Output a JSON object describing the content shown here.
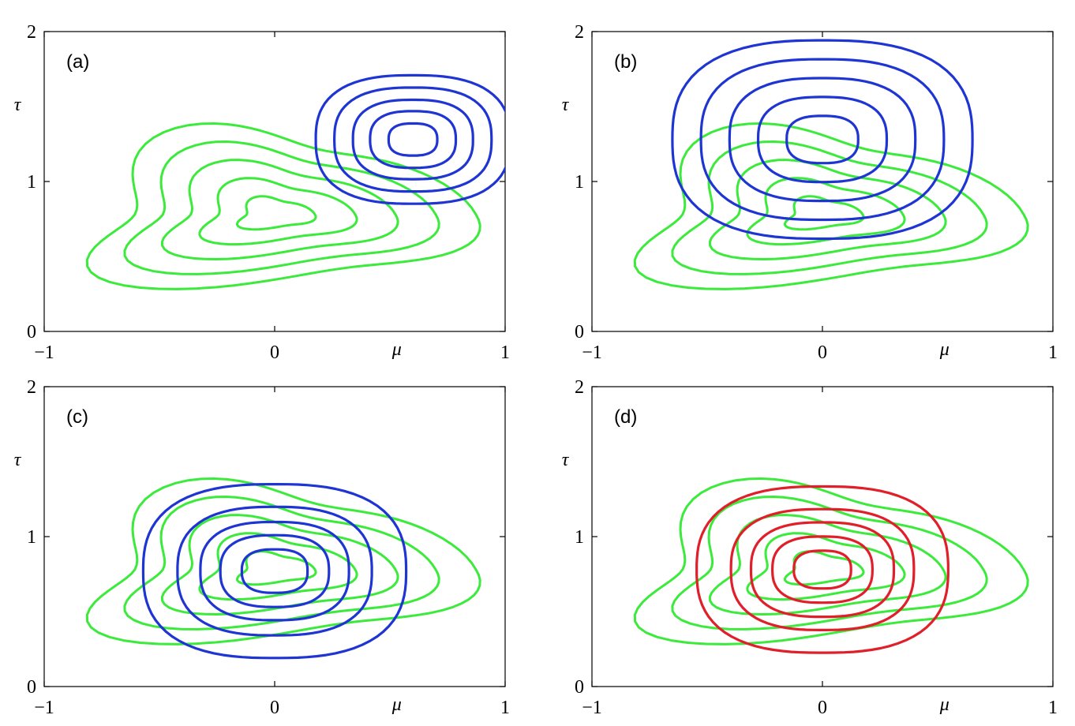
{
  "colors": {
    "green": "#3cea3c",
    "blue": "#1f35d3",
    "red": "#e01f2a",
    "axis": "#000000"
  },
  "chart_data": [
    {
      "type": "contour",
      "panel_label": "(a)",
      "xlabel": "μ",
      "ylabel": "τ",
      "xlim": [
        -1,
        1
      ],
      "ylim": [
        0,
        2
      ],
      "xticks": [
        "−1",
        "0",
        "1"
      ],
      "yticks": [
        "0",
        "1",
        "2"
      ],
      "grid": false,
      "series": [
        {
          "color": "green",
          "family": "green",
          "center": [
            0,
            0.78
          ],
          "levels": [
            0.2,
            0.4,
            0.6,
            0.8,
            1.0
          ]
        },
        {
          "color": "blue",
          "family": "blob",
          "center": [
            0.6,
            1.28
          ],
          "levels": [
            0.17,
            0.3,
            0.42,
            0.55,
            0.68
          ]
        }
      ]
    },
    {
      "type": "contour",
      "panel_label": "(b)",
      "xlabel": "μ",
      "ylabel": "τ",
      "xlim": [
        -1,
        1
      ],
      "ylim": [
        0,
        2
      ],
      "xticks": [
        "−1",
        "0",
        "1"
      ],
      "yticks": [
        "0",
        "1",
        "2"
      ],
      "grid": false,
      "series": [
        {
          "color": "green",
          "family": "green",
          "center": [
            0,
            0.78
          ],
          "levels": [
            0.2,
            0.4,
            0.6,
            0.8,
            1.0
          ]
        },
        {
          "color": "blue",
          "family": "blob",
          "center": [
            0,
            1.28
          ],
          "levels": [
            0.25,
            0.45,
            0.65,
            0.85,
            1.05
          ]
        }
      ]
    },
    {
      "type": "contour",
      "panel_label": "(c)",
      "xlabel": "μ",
      "ylabel": "τ",
      "xlim": [
        -1,
        1
      ],
      "ylim": [
        0,
        2
      ],
      "xticks": [
        "−1",
        "0",
        "1"
      ],
      "yticks": [
        "0",
        "1",
        "2"
      ],
      "grid": false,
      "series": [
        {
          "color": "green",
          "family": "green",
          "center": [
            0,
            0.78
          ],
          "levels": [
            0.2,
            0.4,
            0.6,
            0.8,
            1.0
          ]
        },
        {
          "color": "blue",
          "family": "blob",
          "center": [
            0,
            0.77
          ],
          "levels": [
            0.23,
            0.38,
            0.52,
            0.68,
            0.92
          ]
        }
      ]
    },
    {
      "type": "contour",
      "panel_label": "(d)",
      "xlabel": "μ",
      "ylabel": "τ",
      "xlim": [
        -1,
        1
      ],
      "ylim": [
        0,
        2
      ],
      "xticks": [
        "−1",
        "0",
        "1"
      ],
      "yticks": [
        "0",
        "1",
        "2"
      ],
      "grid": false,
      "series": [
        {
          "color": "green",
          "family": "green",
          "center": [
            0,
            0.78
          ],
          "levels": [
            0.2,
            0.4,
            0.6,
            0.8,
            1.0
          ]
        },
        {
          "color": "red",
          "family": "blob",
          "center": [
            0,
            0.78
          ],
          "levels": [
            0.2,
            0.35,
            0.5,
            0.64,
            0.88
          ]
        }
      ]
    }
  ]
}
